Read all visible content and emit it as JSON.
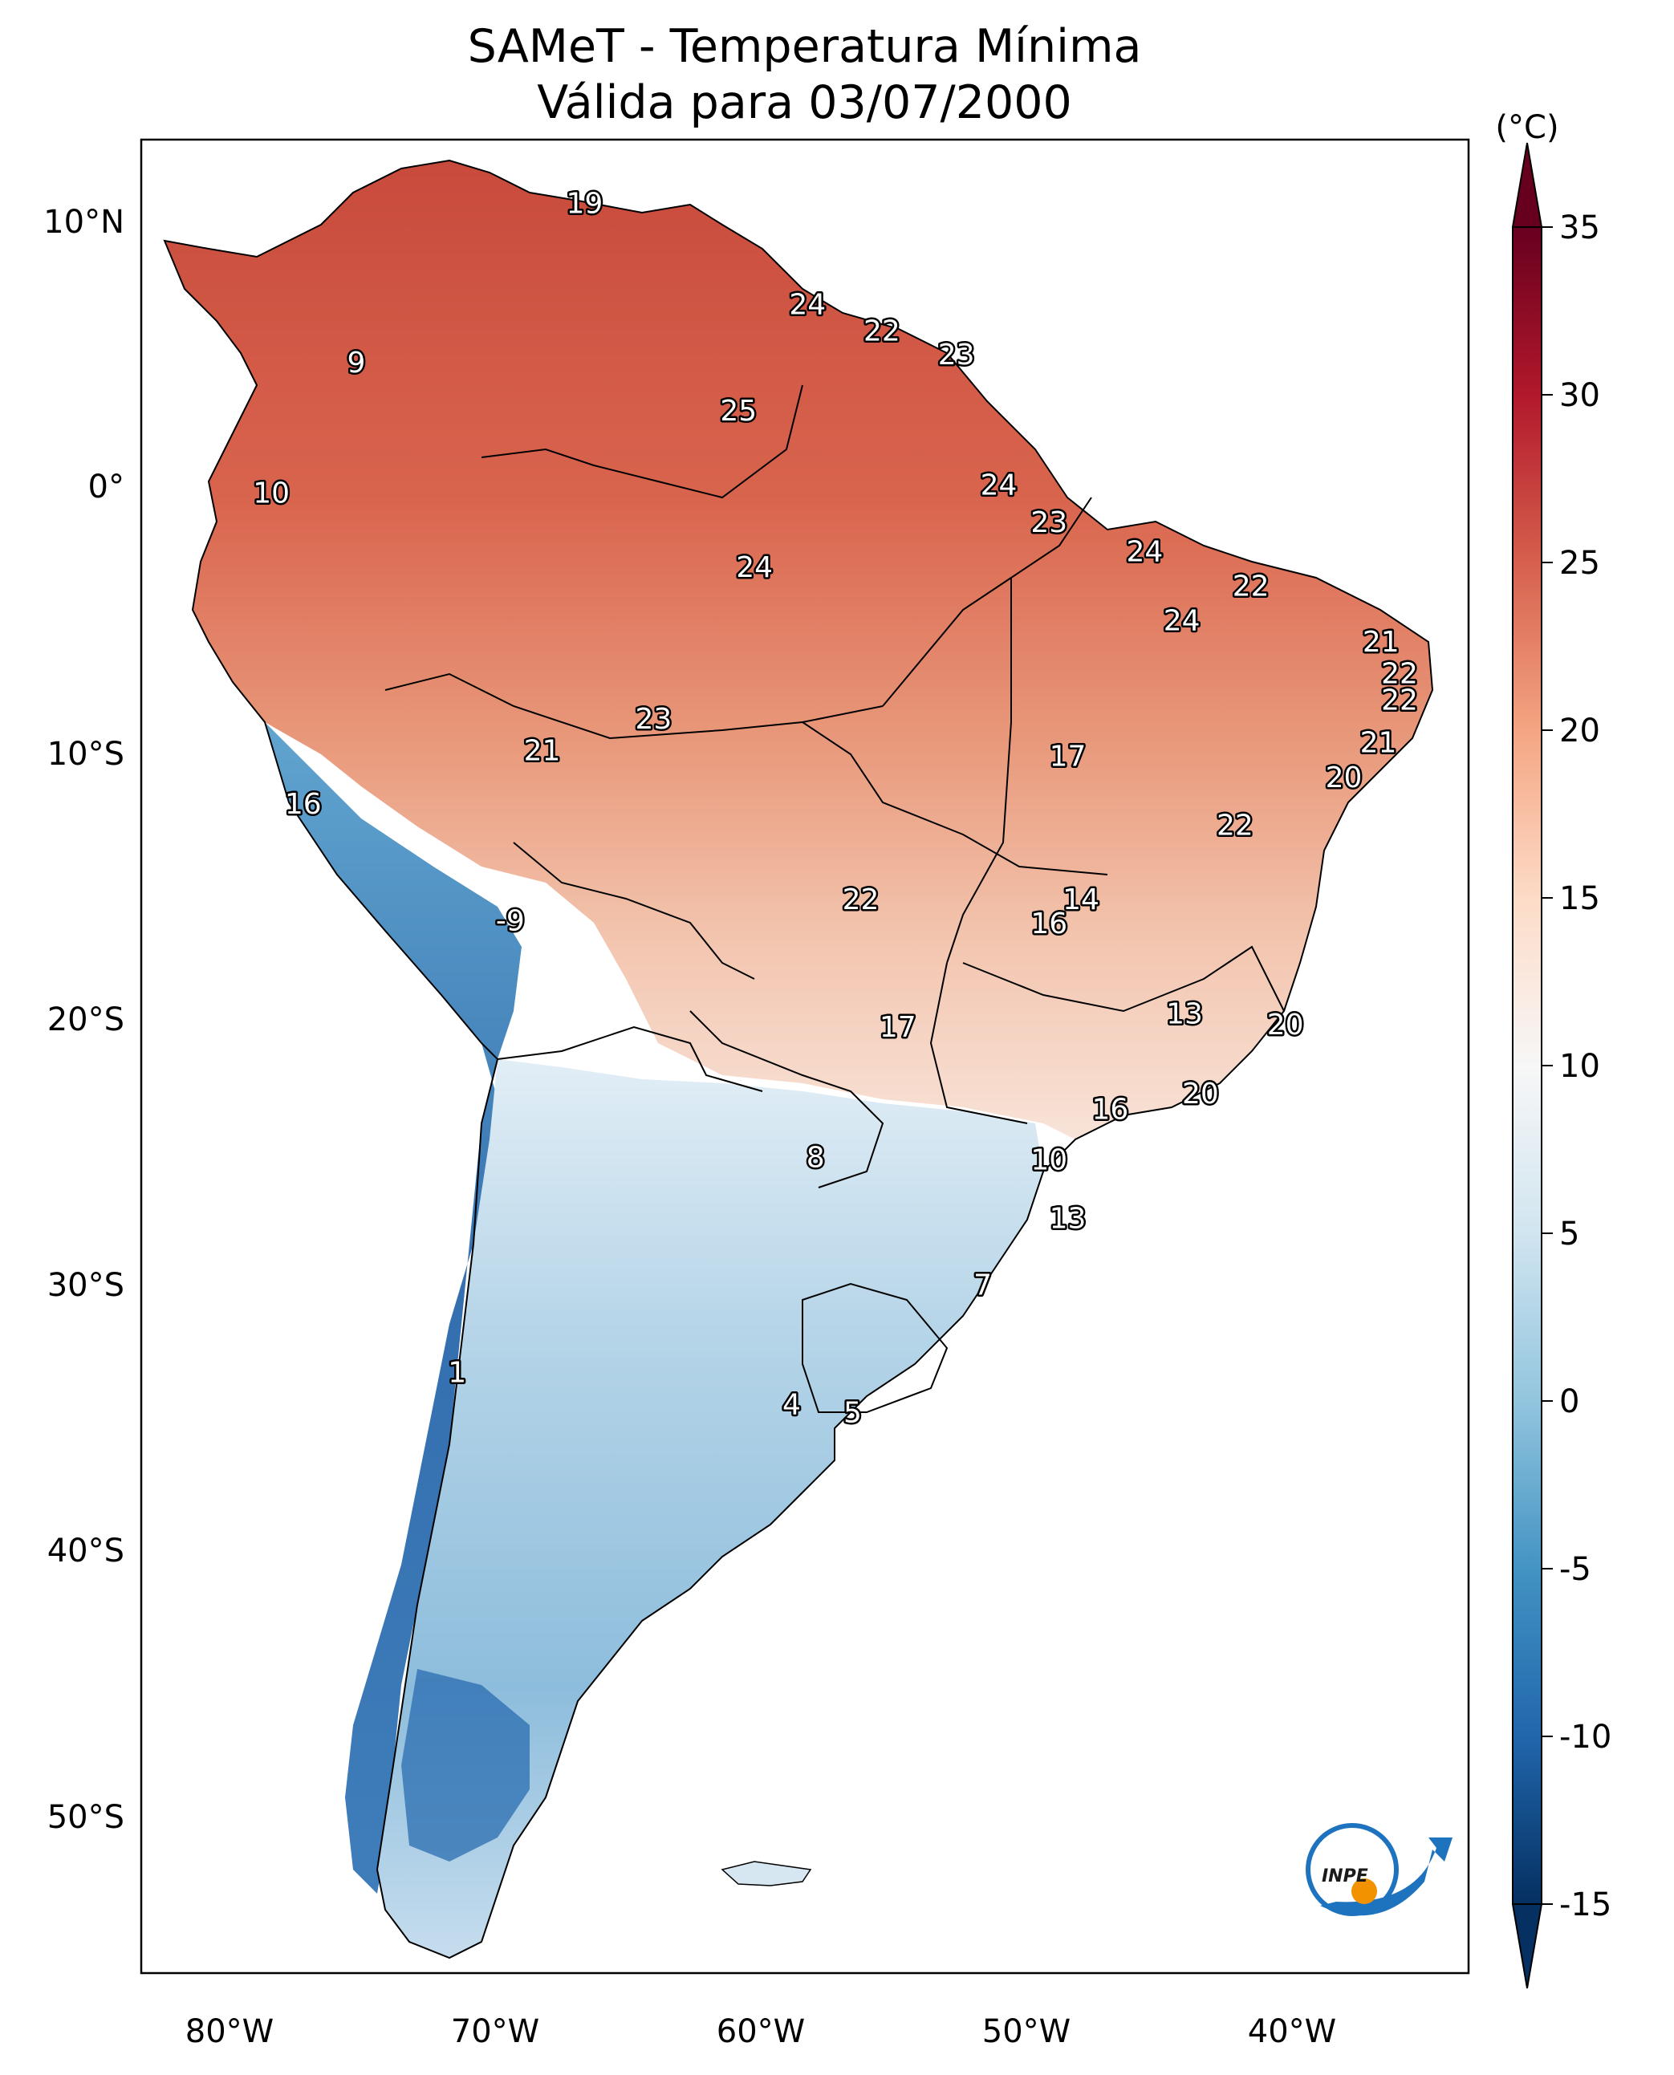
{
  "title": {
    "line1": "SAMeT - Temperatura Mínima",
    "line2": "Válida para 03/07/2000"
  },
  "map": {
    "longitude_ticks": [
      "80°W",
      "70°W",
      "60°W",
      "50°W",
      "40°W"
    ],
    "latitude_ticks": [
      "10°N",
      "0°",
      "10°S",
      "20°S",
      "30°S",
      "40°S",
      "50°S"
    ],
    "extent": {
      "lon_min": -83,
      "lon_max": -33,
      "lat_min": -56,
      "lat_max": 13
    },
    "station_values": [
      {
        "lon": -66.3,
        "lat": 10.6,
        "value": "19"
      },
      {
        "lon": -74.9,
        "lat": 4.6,
        "value": "9"
      },
      {
        "lon": -57.9,
        "lat": 6.8,
        "value": "24"
      },
      {
        "lon": -55.1,
        "lat": 5.8,
        "value": "22"
      },
      {
        "lon": -52.3,
        "lat": 4.9,
        "value": "23"
      },
      {
        "lon": -60.5,
        "lat": 2.8,
        "value": "25"
      },
      {
        "lon": -78.1,
        "lat": -0.3,
        "value": "10"
      },
      {
        "lon": -50.7,
        "lat": 0.0,
        "value": "24"
      },
      {
        "lon": -48.8,
        "lat": -1.4,
        "value": "23"
      },
      {
        "lon": -59.9,
        "lat": -3.1,
        "value": "24"
      },
      {
        "lon": -45.2,
        "lat": -2.5,
        "value": "24"
      },
      {
        "lon": -41.2,
        "lat": -3.8,
        "value": "22"
      },
      {
        "lon": -43.8,
        "lat": -5.1,
        "value": "24"
      },
      {
        "lon": -36.3,
        "lat": -5.9,
        "value": "21"
      },
      {
        "lon": -35.6,
        "lat": -7.1,
        "value": "22"
      },
      {
        "lon": -35.6,
        "lat": -8.1,
        "value": "22"
      },
      {
        "lon": -63.7,
        "lat": -8.8,
        "value": "23"
      },
      {
        "lon": -67.9,
        "lat": -10.0,
        "value": "21"
      },
      {
        "lon": -48.1,
        "lat": -10.2,
        "value": "17"
      },
      {
        "lon": -36.4,
        "lat": -9.7,
        "value": "21"
      },
      {
        "lon": -37.7,
        "lat": -11.0,
        "value": "20"
      },
      {
        "lon": -41.8,
        "lat": -12.8,
        "value": "22"
      },
      {
        "lon": -76.9,
        "lat": -12.0,
        "value": "16"
      },
      {
        "lon": -55.9,
        "lat": -15.6,
        "value": "22"
      },
      {
        "lon": -47.6,
        "lat": -15.6,
        "value": "14"
      },
      {
        "lon": -48.8,
        "lat": -16.5,
        "value": "16"
      },
      {
        "lon": -69.1,
        "lat": -16.4,
        "value": "-9"
      },
      {
        "lon": -54.5,
        "lat": -20.4,
        "value": "17"
      },
      {
        "lon": -43.7,
        "lat": -19.9,
        "value": "13"
      },
      {
        "lon": -39.9,
        "lat": -20.3,
        "value": "20"
      },
      {
        "lon": -46.5,
        "lat": -23.5,
        "value": "16"
      },
      {
        "lon": -43.1,
        "lat": -22.9,
        "value": "20"
      },
      {
        "lon": -57.6,
        "lat": -25.3,
        "value": "8"
      },
      {
        "lon": -48.8,
        "lat": -25.4,
        "value": "10"
      },
      {
        "lon": -48.1,
        "lat": -27.6,
        "value": "13"
      },
      {
        "lon": -51.3,
        "lat": -30.1,
        "value": "7"
      },
      {
        "lon": -71.1,
        "lat": -33.4,
        "value": "1"
      },
      {
        "lon": -58.5,
        "lat": -34.6,
        "value": "4"
      },
      {
        "lon": -56.2,
        "lat": -34.9,
        "value": "5"
      }
    ]
  },
  "colorbar": {
    "unit_label": "(°C)",
    "tick_labels": [
      "35",
      "30",
      "25",
      "20",
      "15",
      "10",
      "5",
      "0",
      "-5",
      "-10",
      "-15"
    ],
    "vmin": -15,
    "vmax": 35,
    "colormap": [
      "#053061",
      "#2166ac",
      "#4393c3",
      "#92c5de",
      "#d1e5f0",
      "#f7f7f7",
      "#fddbc7",
      "#f4a582",
      "#d6604d",
      "#b2182b",
      "#67001f"
    ]
  },
  "logo": {
    "text": "INPE",
    "colors": {
      "blue": "#1e73be",
      "orange": "#f39200"
    }
  }
}
